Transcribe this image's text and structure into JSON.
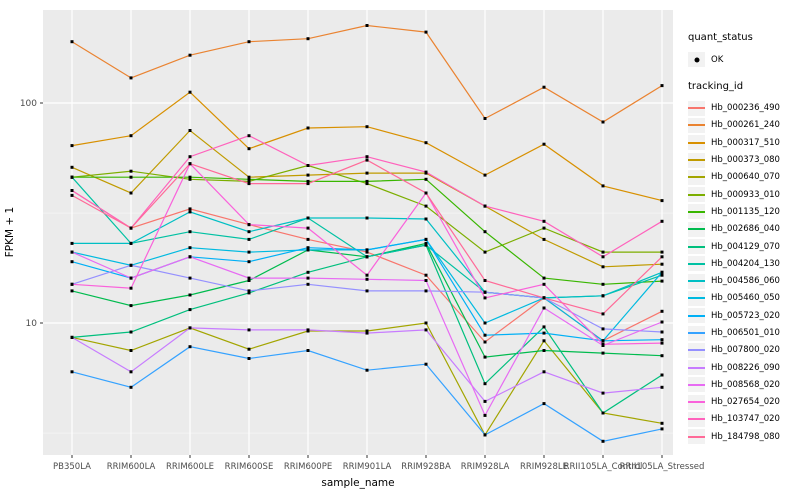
{
  "chart_data": {
    "type": "line",
    "title": "",
    "xlabel": "sample_name",
    "ylabel": "FPKM + 1",
    "y_scale": "log10",
    "y_ticks": [
      100,
      10
    ],
    "y_tick_labels": [
      "100",
      "10"
    ],
    "y_minor_ticks": [
      31.6,
      3.16
    ],
    "ylim": [
      2.5,
      265
    ],
    "grid": true,
    "legend_position": "right",
    "panel_bg": "#EBEBEB",
    "grid_color": "#FFFFFF",
    "tick_label_color": "#4D4D4D",
    "axis_tick_color": "#333333",
    "point_color": "#000000",
    "categories": [
      "PB350LA",
      "RRIM600LA",
      "RRIM600LE",
      "RRIM600SE",
      "RRIM600PE",
      "RRIM901LA",
      "RRIM928BA",
      "RRIM928LA",
      "RRIM928LE",
      "RRII105LA_Control",
      "RRII105LA_Stressed"
    ],
    "series": [
      {
        "name": "Hb_000236_490",
        "color": "#F8766D",
        "values": [
          40,
          27,
          33,
          28,
          24,
          21,
          16.5,
          8.2,
          13,
          8.3,
          11.3
        ]
      },
      {
        "name": "Hb_000261_240",
        "color": "#EA8331",
        "values": [
          190,
          130,
          165,
          190,
          196,
          225,
          210,
          85,
          118,
          82,
          120
        ]
      },
      {
        "name": "Hb_000317_510",
        "color": "#D89000",
        "values": [
          64,
          71,
          112,
          62,
          77,
          78,
          66,
          47,
          65,
          42,
          36
        ]
      },
      {
        "name": "Hb_000373_080",
        "color": "#C09B00",
        "values": [
          51,
          39,
          75,
          46,
          47,
          48,
          48,
          34,
          24,
          18,
          18.5
        ]
      },
      {
        "name": "Hb_000640_070",
        "color": "#A3A500",
        "values": [
          8.6,
          7.5,
          9.5,
          7.6,
          9.2,
          9.2,
          10,
          3.1,
          8.3,
          3.9,
          3.5
        ]
      },
      {
        "name": "Hb_000933_010",
        "color": "#7CAE00",
        "values": [
          46,
          49,
          45,
          44,
          52,
          43,
          34,
          21,
          27,
          21,
          21
        ]
      },
      {
        "name": "Hb_001135_120",
        "color": "#39B600",
        "values": [
          46,
          46,
          46,
          45,
          44,
          44,
          45,
          26,
          16,
          15,
          15.5
        ]
      },
      {
        "name": "Hb_002686_040",
        "color": "#00BB4E",
        "values": [
          14,
          12,
          13.4,
          15.6,
          21.5,
          20,
          23,
          7,
          7.5,
          7.3,
          7.1
        ]
      },
      {
        "name": "Hb_004129_070",
        "color": "#00BF7D",
        "values": [
          8.6,
          9.1,
          11.5,
          13.7,
          17,
          20,
          22.6,
          5.3,
          9.6,
          3.9,
          5.8
        ]
      },
      {
        "name": "Hb_004204_130",
        "color": "#00C1A3",
        "values": [
          46,
          23,
          26,
          24,
          30,
          20,
          22.6,
          13.8,
          13,
          13.3,
          16.5
        ]
      },
      {
        "name": "Hb_004586_060",
        "color": "#00BFC4",
        "values": [
          23,
          23,
          32,
          26,
          30,
          30,
          29.7,
          13.8,
          13,
          13.3,
          17
        ]
      },
      {
        "name": "Hb_005460_050",
        "color": "#00BAE0",
        "values": [
          21,
          18.3,
          22,
          21,
          21.5,
          21.5,
          24,
          10,
          13,
          8.3,
          17
        ]
      },
      {
        "name": "Hb_005723_020",
        "color": "#00B0F6",
        "values": [
          19,
          16,
          20,
          19,
          22,
          21.5,
          24,
          8.8,
          9,
          8.3,
          8.4
        ]
      },
      {
        "name": "Hb_006501_010",
        "color": "#35A2FF",
        "values": [
          6,
          5.1,
          7.8,
          6.9,
          7.5,
          6.1,
          6.5,
          3.1,
          4.3,
          2.9,
          3.3
        ]
      },
      {
        "name": "Hb_007800_020",
        "color": "#9590FF",
        "values": [
          15,
          18.3,
          16,
          14,
          15,
          14,
          14,
          13.8,
          13,
          9.4,
          9.1
        ]
      },
      {
        "name": "Hb_008226_090",
        "color": "#C77CFF",
        "values": [
          8.6,
          6,
          9.5,
          9.3,
          9.3,
          9,
          9.3,
          4.4,
          6,
          4.8,
          5.1
        ]
      },
      {
        "name": "Hb_008568_020",
        "color": "#E76BF3",
        "values": [
          21,
          16,
          20,
          16,
          16,
          15.8,
          15.6,
          3.8,
          11.7,
          7.9,
          10.1
        ]
      },
      {
        "name": "Hb_027654_020",
        "color": "#FA62DB",
        "values": [
          15,
          14.4,
          53,
          28,
          27,
          16.5,
          39,
          13,
          15,
          8,
          8.1
        ]
      },
      {
        "name": "Hb_103747_020",
        "color": "#FF62BC",
        "values": [
          40,
          27,
          57,
          71,
          52,
          57,
          48.5,
          34,
          29,
          20,
          29
        ]
      },
      {
        "name": "Hb_184798_080",
        "color": "#FF6A98",
        "values": [
          38,
          27,
          53,
          43,
          43,
          55,
          39,
          15.6,
          13,
          11,
          20
        ]
      }
    ]
  },
  "legend": {
    "quant_status": {
      "title": "quant_status",
      "items": [
        {
          "label": "OK"
        }
      ]
    },
    "tracking": {
      "title": "tracking_id"
    }
  }
}
